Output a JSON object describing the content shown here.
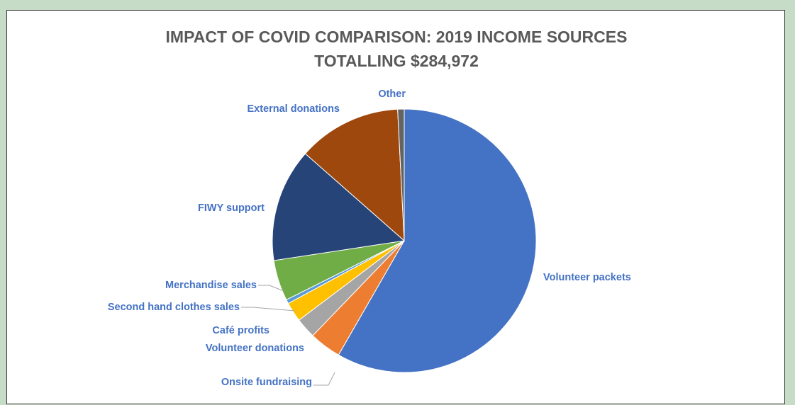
{
  "chart_data": {
    "type": "pie",
    "title": "IMPACT OF COVID COMPARISON:  2019 INCOME SOURCES",
    "subtitle": "TOTALLING $284,972",
    "slices": [
      {
        "label": "Volunteer packets",
        "percent": 58.3,
        "color": "#4472c4"
      },
      {
        "label": "Onsite fundraising",
        "percent": 3.9,
        "color": "#ed7d31"
      },
      {
        "label": "Volunteer donations",
        "percent": 2.5,
        "color": "#a5a5a5"
      },
      {
        "label": "Café profits",
        "percent": 2.4,
        "color": "#ffc000"
      },
      {
        "label": "Second hand clothes sales",
        "percent": 0.5,
        "color": "#5b9bd5"
      },
      {
        "label": "Merchandise sales",
        "percent": 5.0,
        "color": "#70ad47"
      },
      {
        "label": "FIWY support",
        "percent": 13.9,
        "color": "#264478"
      },
      {
        "label": "External donations",
        "percent": 12.7,
        "color": "#9e480e"
      },
      {
        "label": "Other",
        "percent": 0.8,
        "color": "#636363"
      }
    ],
    "label_color": "#4472c4",
    "legend": "none"
  }
}
